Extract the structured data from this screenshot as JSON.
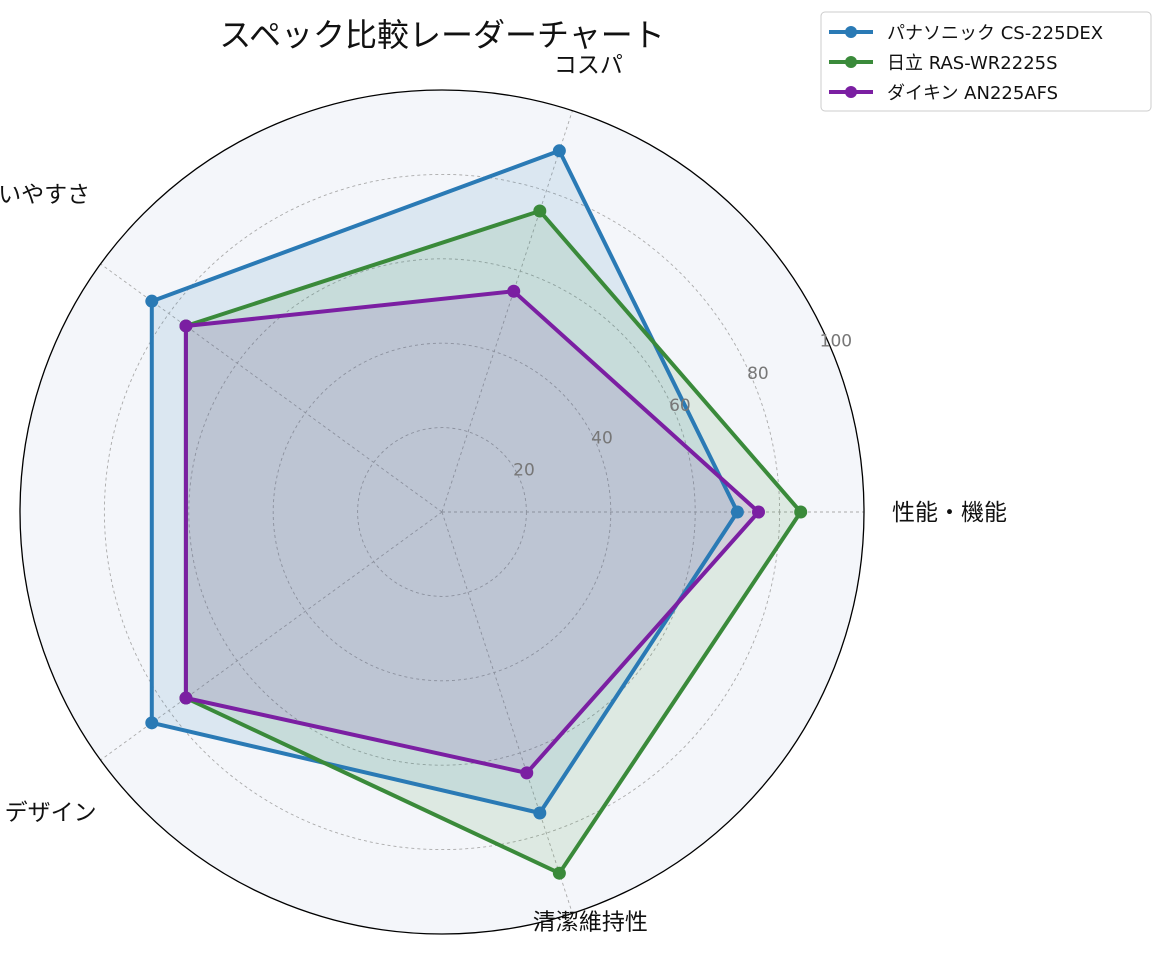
{
  "chart_data": {
    "type": "radar",
    "title": "スペック比較レーダーチャート",
    "categories": [
      "性能・機能",
      "コスパ",
      "使いやすさ",
      "デザイン",
      "清潔維持性"
    ],
    "rlim": [
      0,
      100
    ],
    "rticks": [
      20,
      40,
      60,
      80,
      100
    ],
    "rtick_labels": [
      "20",
      "40",
      "60",
      "80",
      "100"
    ],
    "grid": true,
    "legend_position": "top-right",
    "series": [
      {
        "name": "パナソニック CS-225DEX",
        "values": [
          70,
          90,
          85,
          85,
          75
        ],
        "color": "#2a7ab5"
      },
      {
        "name": "日立 RAS-WR2225S",
        "values": [
          85,
          75,
          75,
          75,
          90
        ],
        "color": "#3a8a3a"
      },
      {
        "name": "ダイキン AN225AFS",
        "values": [
          75,
          55,
          75,
          75,
          65
        ],
        "color": "#7b1fa2"
      }
    ]
  }
}
